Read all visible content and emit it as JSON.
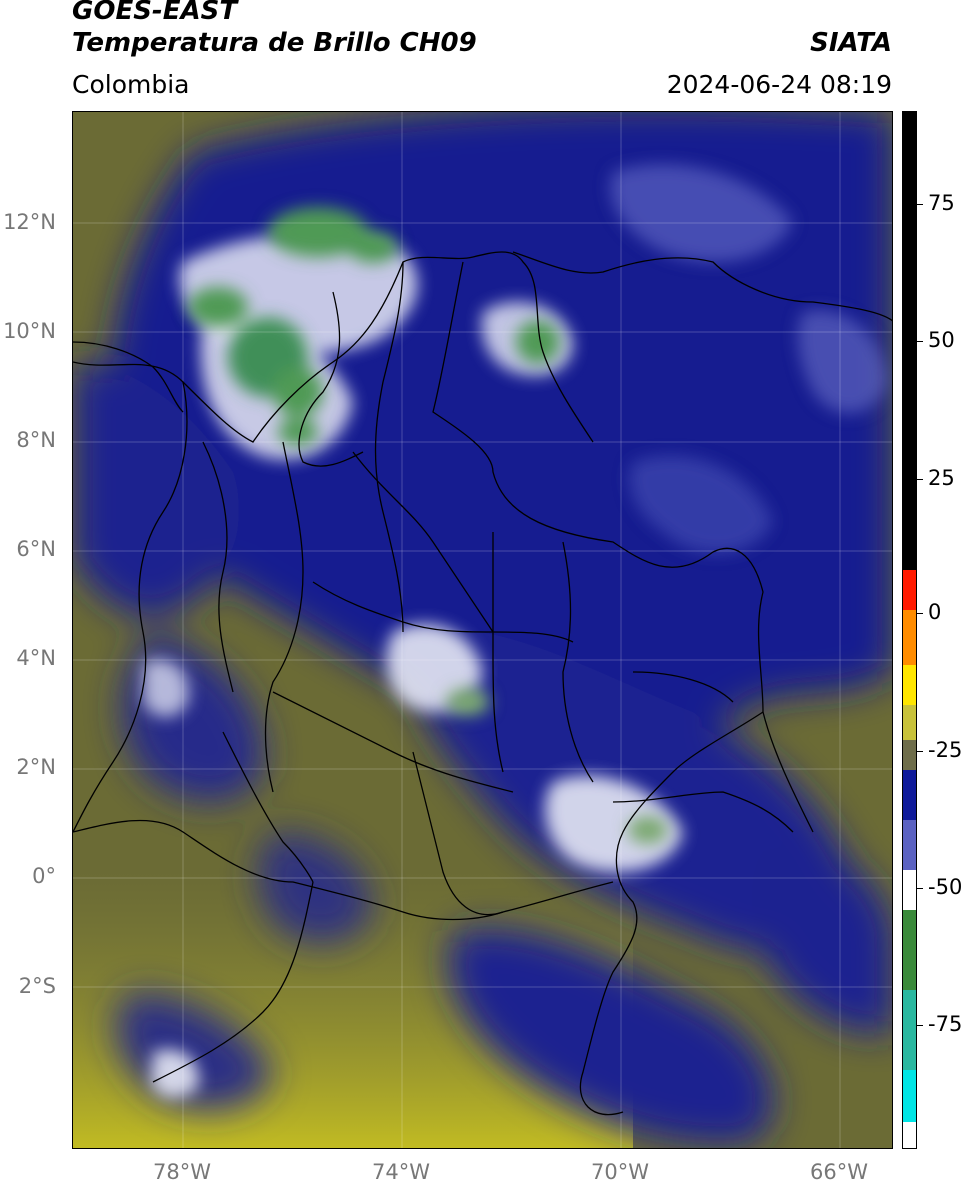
{
  "header": {
    "line1": "GOES-EAST",
    "line2": "Temperatura de Brillo CH09",
    "brand": "SIATA",
    "region": "Colombia",
    "datetime": "2024-06-24 08:19"
  },
  "map": {
    "lat_labels": [
      "12°N",
      "10°N",
      "8°N",
      "6°N",
      "4°N",
      "2°N",
      "0°",
      "2°S"
    ],
    "lon_labels": [
      "78°W",
      "74°W",
      "70°W",
      "66°W"
    ],
    "colors": {
      "background_olive": "#6b6b35",
      "cloud_blue": "#1b1f8a",
      "deep_blue": "#0f1480",
      "cloud_white": "#e6e8f4",
      "cold_green": "#4f9a55",
      "yellow_south": "#b8b328",
      "borders": "#000000"
    }
  },
  "colorbar": {
    "tick_labels": [
      "75",
      "50",
      "25",
      "0",
      "-25",
      "-50",
      "-75"
    ],
    "segments": [
      {
        "color": "#000000"
      },
      {
        "color": "#ff1a00"
      },
      {
        "color": "#ff8c00"
      },
      {
        "color": "#ffe600"
      },
      {
        "color": "#c8c23a"
      },
      {
        "color": "#6e6d4a"
      },
      {
        "color": "#2a2f88"
      },
      {
        "color": "#0f1a9a"
      },
      {
        "color": "#5b62c2"
      },
      {
        "color": "#ffffff"
      },
      {
        "color": "#3a8a3a"
      },
      {
        "color": "#2ab8a0"
      },
      {
        "color": "#00e5e5"
      },
      {
        "color": "#ffffff"
      }
    ]
  }
}
